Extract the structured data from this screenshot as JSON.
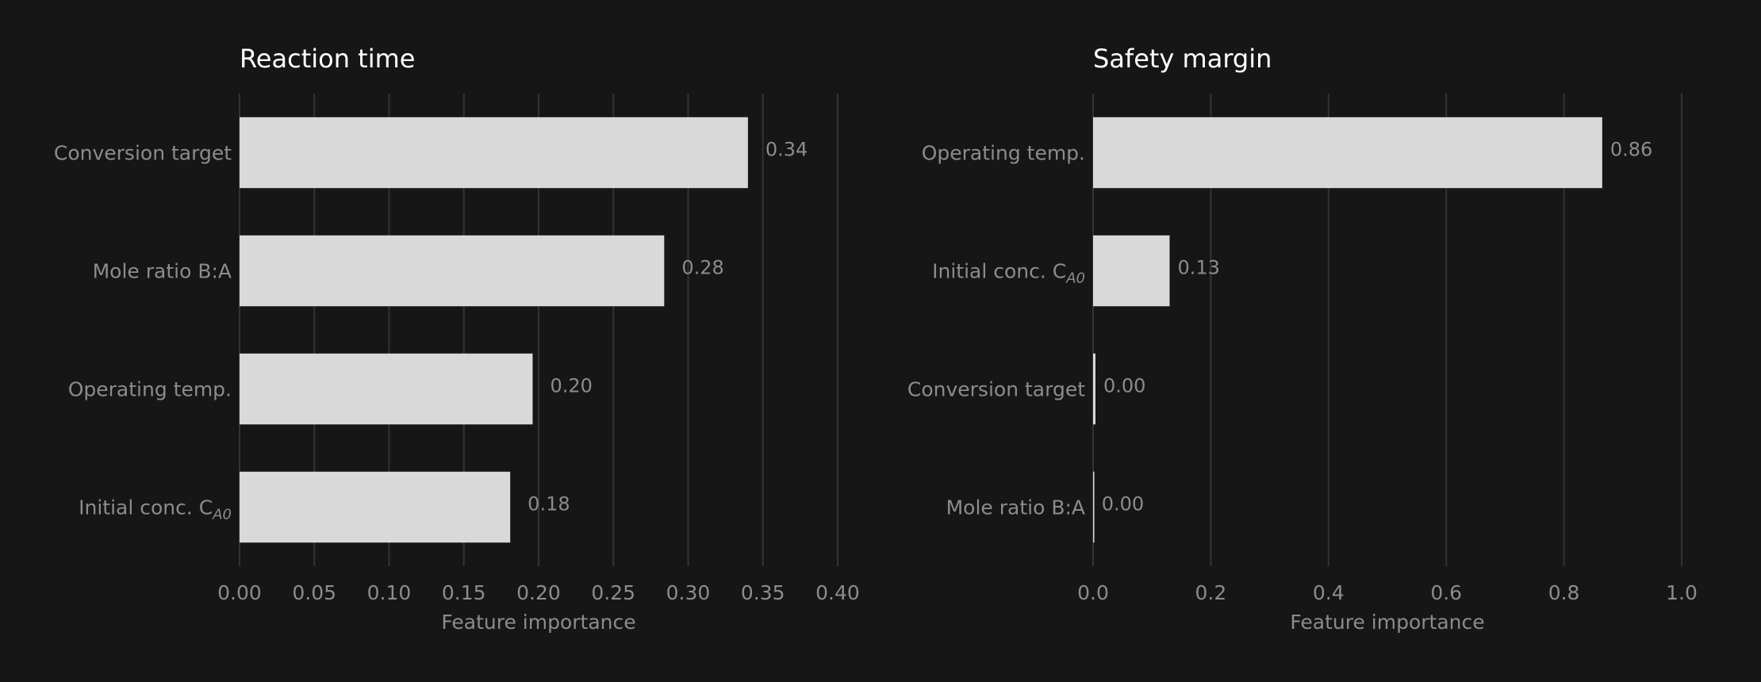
{
  "chart_data": [
    {
      "type": "bar",
      "orientation": "horizontal",
      "title": "Reaction time",
      "xlabel": "Feature importance",
      "ylabel": "",
      "categories": [
        {
          "label": "Conversion target",
          "sub": ""
        },
        {
          "label": "Mole ratio B:A",
          "sub": ""
        },
        {
          "label": "Operating temp.",
          "sub": ""
        },
        {
          "label": "Initial conc. C",
          "sub": "A0"
        }
      ],
      "values": [
        0.34,
        0.284,
        0.196,
        0.181
      ],
      "value_labels": [
        "0.34",
        "0.28",
        "0.20",
        "0.18"
      ],
      "xlim": [
        0,
        0.4
      ],
      "xticks": [
        0,
        0.05,
        0.1,
        0.15,
        0.2,
        0.25,
        0.3,
        0.35,
        0.4
      ],
      "xtick_labels": [
        "0.00",
        "0.05",
        "0.10",
        "0.15",
        "0.20",
        "0.25",
        "0.30",
        "0.35",
        "0.40"
      ],
      "grid": true
    },
    {
      "type": "bar",
      "orientation": "horizontal",
      "title": "Safety margin",
      "xlabel": "Feature importance",
      "ylabel": "",
      "categories": [
        {
          "label": "Operating temp.",
          "sub": ""
        },
        {
          "label": "Initial conc. C",
          "sub": "A0"
        },
        {
          "label": "Conversion target",
          "sub": ""
        },
        {
          "label": "Mole ratio B:A",
          "sub": ""
        }
      ],
      "values": [
        0.865,
        0.13,
        0.004,
        0.001
      ],
      "value_labels": [
        "0.86",
        "0.13",
        "0.00",
        "0.00"
      ],
      "xlim": [
        0,
        1.0
      ],
      "xticks": [
        0,
        0.2,
        0.4,
        0.6,
        0.8,
        1.0
      ],
      "xtick_labels": [
        "0.0",
        "0.2",
        "0.4",
        "0.6",
        "0.8",
        "1.0"
      ],
      "grid": true
    }
  ],
  "colors": {
    "background": "#161616",
    "bar": "#d9d9d9",
    "grid": "#333333",
    "text_muted": "#8c8c8c",
    "title": "#ffffff"
  }
}
